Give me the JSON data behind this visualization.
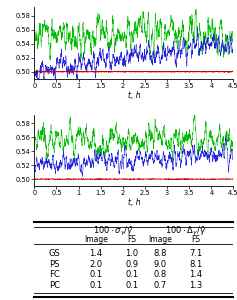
{
  "xlim": [
    0,
    4.5
  ],
  "xticks": [
    0,
    0.5,
    1,
    1.5,
    2,
    2.5,
    3,
    3.5,
    4,
    4.5
  ],
  "ylim": [
    0.49,
    0.592
  ],
  "yticks": [
    0.5,
    0.52,
    0.54,
    0.56,
    0.58
  ],
  "xlabel": "t, h",
  "n_points": 1800,
  "green_color": "#00bb00",
  "blue_color": "#2222dd",
  "red_color": "#cc0000",
  "black_color": "#111111",
  "table_rows": [
    "GS",
    "PS",
    "FC",
    "PC"
  ],
  "table_col1": [
    1.4,
    2.0,
    0.1,
    0.1
  ],
  "table_col2": [
    1.0,
    0.9,
    0.1,
    0.1
  ],
  "table_col3": [
    8.8,
    9.0,
    0.8,
    0.7
  ],
  "table_col4": [
    7.1,
    8.1,
    1.4,
    1.3
  ],
  "subheader": [
    "Image",
    "FS",
    "Image",
    "FS"
  ]
}
